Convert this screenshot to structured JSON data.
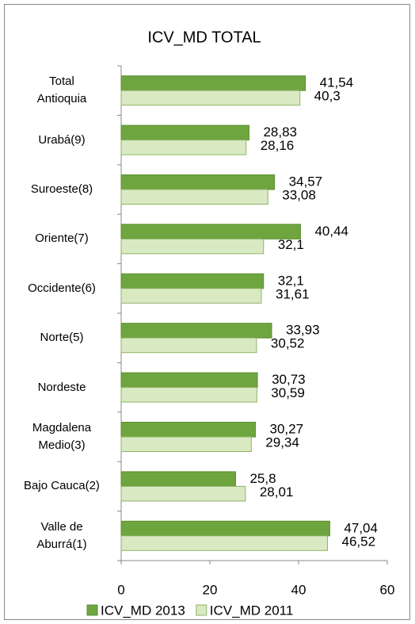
{
  "chart_data": {
    "type": "bar",
    "orientation": "horizontal",
    "title": "ICV_MD TOTAL",
    "categories": [
      "Total\nAntioquia",
      "Urabá(9)",
      "Suroeste(8)",
      "Oriente(7)",
      "Occidente(6)",
      "Norte(5)",
      "Nordeste",
      "Magdalena\nMedio(3)",
      "Bajo Cauca(2)",
      "Valle de\nAburrá(1)"
    ],
    "series": [
      {
        "name": "ICV_MD 2013",
        "color": "#6fa53f",
        "values": [
          41.54,
          28.83,
          34.57,
          40.44,
          32.1,
          33.93,
          30.73,
          30.27,
          25.8,
          47.04
        ],
        "value_labels": [
          "41,54",
          "28,83",
          "34,57",
          "40,44",
          "32,1",
          "33,93",
          "30,73",
          "30,27",
          "25,8",
          "47,04"
        ]
      },
      {
        "name": "ICV_MD 2011",
        "color": "#d9eac3",
        "values": [
          40.3,
          28.16,
          33.08,
          32.1,
          31.61,
          30.52,
          30.59,
          29.34,
          28.01,
          46.52
        ],
        "value_labels": [
          "40,3",
          "28,16",
          "33,08",
          "32,1",
          "31,61",
          "30,52",
          "30,59",
          "29,34",
          "28,01",
          "46,52"
        ]
      }
    ],
    "xlim": [
      0,
      60
    ],
    "xticks": [
      0,
      20,
      40,
      60
    ],
    "legend": "bottom"
  }
}
